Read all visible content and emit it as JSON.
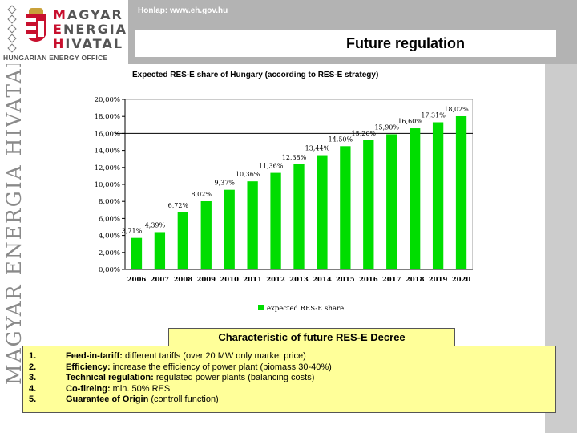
{
  "header": {
    "logo_lines": [
      "MAGYAR",
      "ENERGIA",
      "HIVATAL"
    ],
    "logo_subtitle": "HUNGARIAN ENERGY OFFICE",
    "homepage": "Honlap: www.eh.gov.hu",
    "slide_title": "Future regulation"
  },
  "sidebar": {
    "vertical_text": "MAGYAR ENERGIA HIVATAL"
  },
  "chart_caption": "Expected RES-E share of Hungary (according to RES-E strategy)",
  "chart_data": {
    "type": "bar",
    "categories": [
      "2006",
      "2007",
      "2008",
      "2009",
      "2010",
      "2011",
      "2012",
      "2013",
      "2014",
      "2015",
      "2016",
      "2017",
      "2018",
      "2019",
      "2020"
    ],
    "series": [
      {
        "name": "expected RES-E share",
        "values": [
          3.71,
          4.39,
          6.72,
          8.02,
          9.37,
          10.36,
          11.36,
          12.38,
          13.44,
          14.5,
          15.2,
          15.9,
          16.6,
          17.31,
          18.02
        ],
        "labels": [
          "3,71%",
          "4,39%",
          "6,72%",
          "8,02%",
          "9,37%",
          "10,36%",
          "11,36%",
          "12,38%",
          "13,44%",
          "14,50%",
          "15,20%",
          "15,90%",
          "16,60%",
          "17,31%",
          "18,02%"
        ]
      }
    ],
    "y_ticks": [
      "0,00%",
      "2,00%",
      "4,00%",
      "6,00%",
      "8,00%",
      "10,00%",
      "12,00%",
      "14,00%",
      "16,00%",
      "18,00%",
      "20,00%"
    ],
    "ylim": [
      0,
      20
    ],
    "reference_line": 16,
    "grid": false,
    "legend_position": "bottom",
    "bar_color": "#00dd00",
    "plot_background": "#ffffff"
  },
  "decree": {
    "title": "Characteristic of future RES-E Decree",
    "items": [
      {
        "num": "1.",
        "bold": "Feed-in-tariff:",
        "text": " different tariffs (over 20 MW only market price)"
      },
      {
        "num": "2.",
        "bold": "Efficiency:",
        "text": " increase the efficiency of power plant (biomass 30-40%)"
      },
      {
        "num": "3.",
        "bold": "Technical regulation:",
        "text": " regulated power plants (balancing costs)"
      },
      {
        "num": "4.",
        "bold": "Co-fireing:",
        "text": " min. 50% RES"
      },
      {
        "num": "5.",
        "bold": "Guarantee of Origin",
        "text": " (controll function)"
      }
    ]
  },
  "colors": {
    "top_bar": "#b3b3b3",
    "right_bar": "#cccccc",
    "decree_background": "#ffff99",
    "logo_accent": "#c8102e"
  }
}
